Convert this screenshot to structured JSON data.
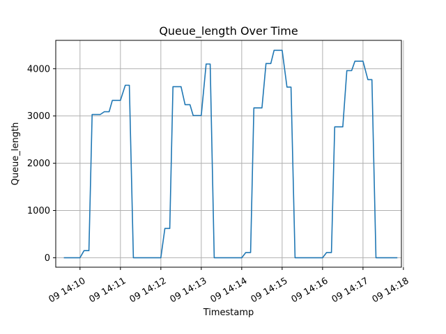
{
  "chart_data": {
    "type": "line",
    "title": "Queue_length Over Time",
    "xlabel": "Timestamp",
    "ylabel": "Queue_length",
    "grid": true,
    "xlim": [
      9.4,
      17.95
    ],
    "ylim": [
      -200,
      4600
    ],
    "x_ticks": [
      {
        "value": 10,
        "label": "09 14:10"
      },
      {
        "value": 11,
        "label": "09 14:11"
      },
      {
        "value": 12,
        "label": "09 14:12"
      },
      {
        "value": 13,
        "label": "09 14:13"
      },
      {
        "value": 14,
        "label": "09 14:14"
      },
      {
        "value": 15,
        "label": "09 14:15"
      },
      {
        "value": 16,
        "label": "09 14:16"
      },
      {
        "value": 17,
        "label": "09 14:17"
      },
      {
        "value": 18,
        "label": "09 14:18"
      }
    ],
    "y_ticks": [
      {
        "value": 0,
        "label": "0"
      },
      {
        "value": 1000,
        "label": "1000"
      },
      {
        "value": 2000,
        "label": "2000"
      },
      {
        "value": 3000,
        "label": "3000"
      },
      {
        "value": 4000,
        "label": "4000"
      }
    ],
    "series": [
      {
        "color": "#1f77b4",
        "x": [
          9.6,
          9.9,
          10.0,
          10.1,
          10.22,
          10.3,
          10.5,
          10.6,
          10.72,
          10.8,
          11.0,
          11.12,
          11.22,
          11.32,
          11.6,
          12.0,
          12.1,
          12.22,
          12.3,
          12.5,
          12.6,
          12.72,
          12.8,
          13.0,
          13.12,
          13.22,
          13.32,
          13.6,
          14.0,
          14.1,
          14.22,
          14.3,
          14.5,
          14.6,
          14.72,
          14.8,
          15.0,
          15.12,
          15.22,
          15.32,
          15.6,
          16.0,
          16.1,
          16.22,
          16.3,
          16.5,
          16.6,
          16.72,
          16.8,
          17.0,
          17.12,
          17.22,
          17.32,
          17.6,
          17.85
        ],
        "y": [
          0,
          0,
          0,
          150,
          150,
          3030,
          3030,
          3090,
          3090,
          3330,
          3330,
          3650,
          3650,
          0,
          0,
          0,
          620,
          620,
          3620,
          3620,
          3240,
          3240,
          3010,
          3010,
          4100,
          4100,
          0,
          0,
          0,
          110,
          110,
          3170,
          3170,
          4110,
          4110,
          4390,
          4390,
          3610,
          3610,
          0,
          0,
          0,
          110,
          110,
          2770,
          2770,
          3960,
          3960,
          4160,
          4160,
          3770,
          3770,
          0,
          0,
          0
        ]
      }
    ]
  }
}
